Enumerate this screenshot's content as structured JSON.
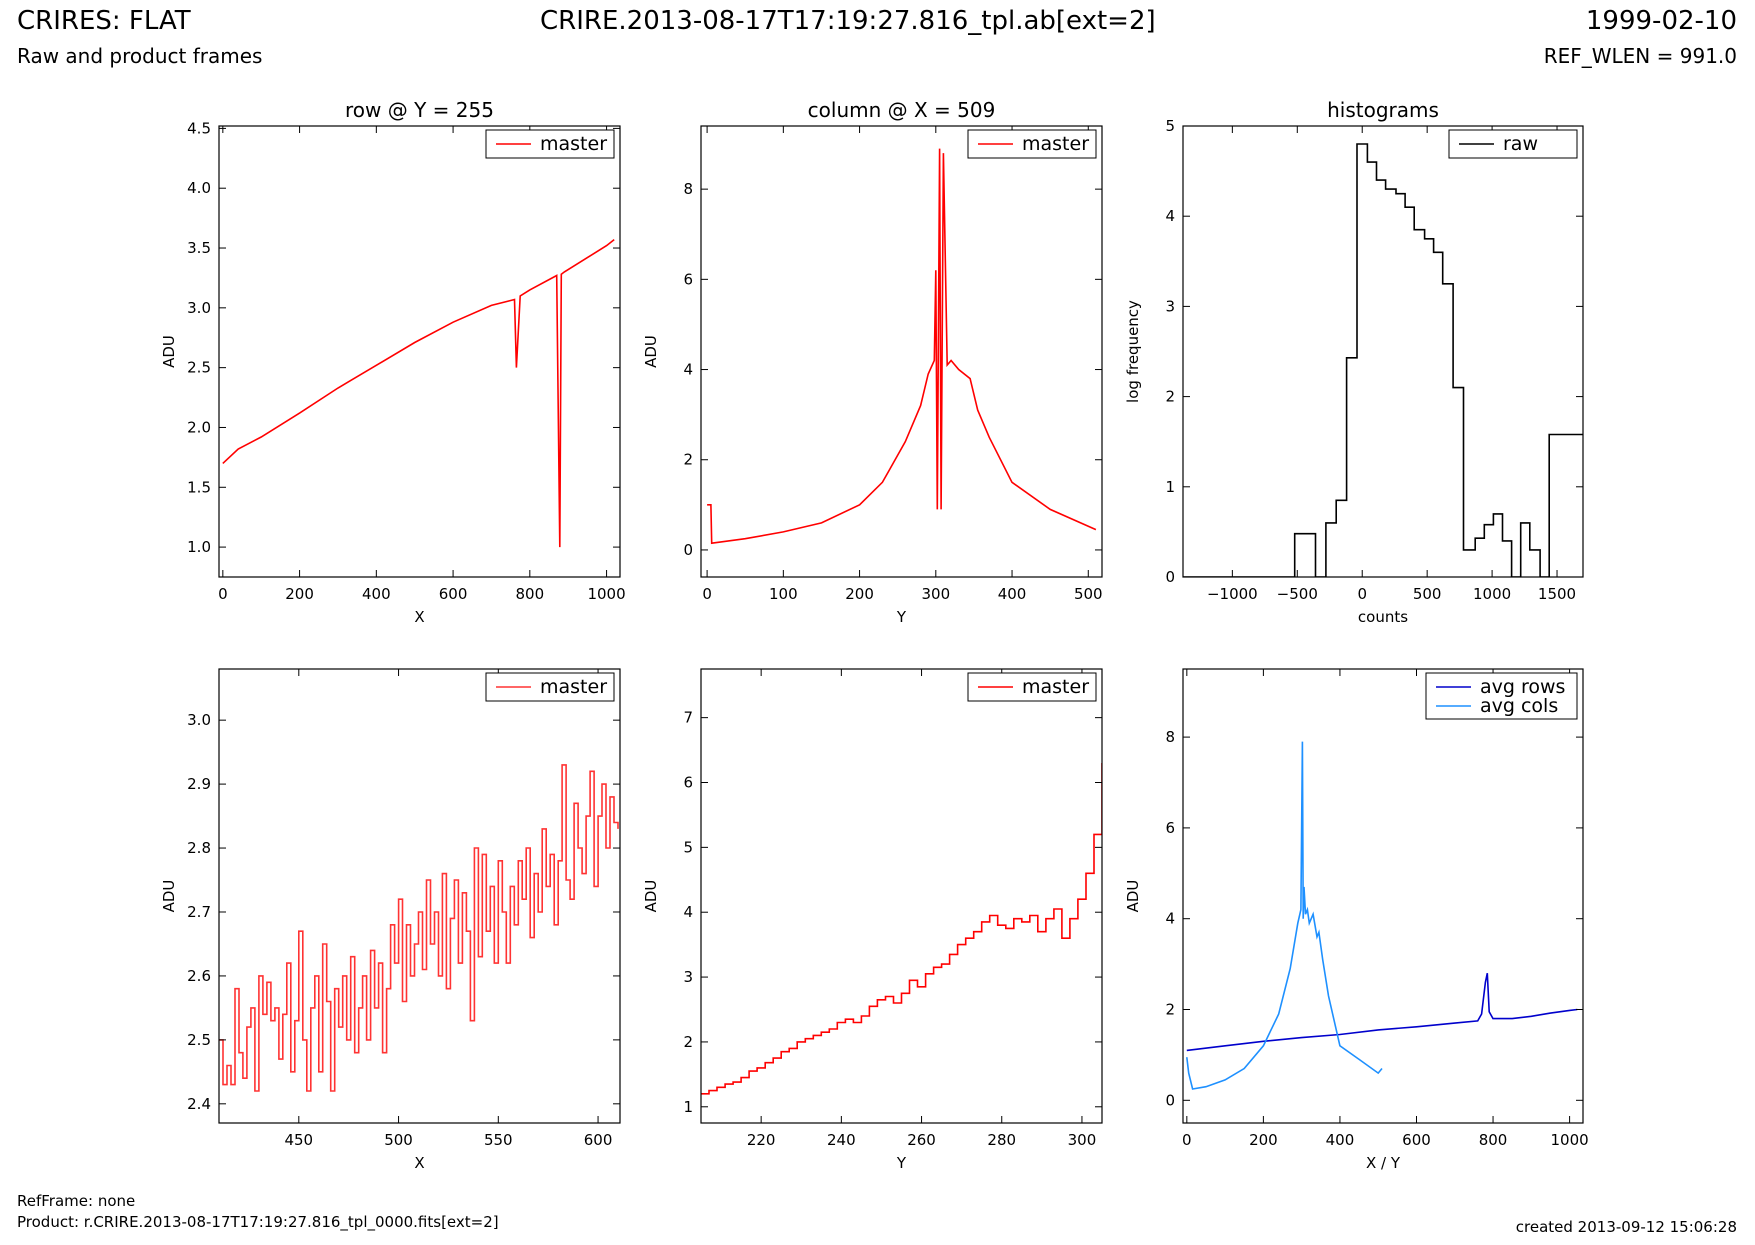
{
  "header": {
    "title": "CRIRES: FLAT",
    "subtitle": "Raw and product frames",
    "file": "CRIRE.2013-08-17T17:19:27.816_tpl.ab[ext=2]",
    "date": "1999-02-10",
    "ref_wlen": "REF_WLEN = 991.0"
  },
  "footer": {
    "refframe": "RefFrame: none",
    "product": "Product: r.CRIRE.2013-08-17T17:19:27.816_tpl_0000.fits[ext=2]",
    "created": "created 2013-09-12 15:06:28"
  },
  "colors": {
    "master": "#ff0000",
    "raw": "#000000",
    "avg_rows": "#0000cc",
    "avg_cols": "#1e90ff"
  },
  "chart_data": [
    {
      "type": "line",
      "title": "row @ Y = 255",
      "xlabel": "X",
      "ylabel": "ADU",
      "xlim": [
        -10,
        1035
      ],
      "ylim": [
        0.75,
        4.52
      ],
      "xticks": [
        0,
        200,
        400,
        600,
        800,
        1000
      ],
      "yticks": [
        1.0,
        1.5,
        2.0,
        2.5,
        3.0,
        3.5,
        4.0,
        4.5
      ],
      "legend_position": "top-right",
      "series": [
        {
          "name": "master",
          "color": "#ff0000",
          "x": [
            0,
            40,
            100,
            200,
            300,
            400,
            500,
            600,
            700,
            760,
            765,
            775,
            800,
            870,
            878,
            882,
            890,
            950,
            1000,
            1020
          ],
          "y": [
            1.7,
            1.82,
            1.92,
            2.12,
            2.33,
            2.52,
            2.71,
            2.88,
            3.02,
            3.07,
            2.5,
            3.1,
            3.15,
            3.27,
            1.0,
            3.28,
            3.3,
            3.42,
            3.52,
            3.57
          ]
        }
      ]
    },
    {
      "type": "line",
      "title": "column @ X = 509",
      "xlabel": "Y",
      "ylabel": "ADU",
      "xlim": [
        -8,
        518
      ],
      "ylim": [
        -0.6,
        9.4
      ],
      "xticks": [
        0,
        100,
        200,
        300,
        400,
        500
      ],
      "yticks": [
        0,
        2,
        4,
        6,
        8
      ],
      "legend_position": "top-right",
      "series": [
        {
          "name": "master",
          "color": "#ff0000",
          "x": [
            0,
            5,
            6,
            50,
            100,
            150,
            200,
            230,
            260,
            280,
            290,
            298,
            300,
            302,
            305,
            307,
            310,
            315,
            320,
            330,
            345,
            355,
            370,
            400,
            450,
            510
          ],
          "y": [
            1.0,
            1.0,
            0.15,
            0.25,
            0.4,
            0.6,
            1.0,
            1.5,
            2.4,
            3.2,
            3.9,
            4.2,
            6.2,
            0.9,
            8.9,
            0.9,
            8.8,
            4.1,
            4.2,
            4.0,
            3.8,
            3.1,
            2.5,
            1.5,
            0.9,
            0.45
          ]
        }
      ]
    },
    {
      "type": "line",
      "title": "histograms",
      "xlabel": "counts",
      "ylabel": "log frequency",
      "xlim": [
        -1380,
        1700
      ],
      "ylim": [
        0,
        5
      ],
      "xticks": [
        -1000,
        -500,
        0,
        500,
        1000,
        1500
      ],
      "yticks": [
        0,
        1,
        2,
        3,
        4,
        5
      ],
      "legend_position": "top-right",
      "series": [
        {
          "name": "raw",
          "color": "#000000",
          "step": true,
          "x": [
            -1380,
            -520,
            -360,
            -280,
            -200,
            -120,
            -40,
            40,
            110,
            180,
            260,
            330,
            400,
            480,
            550,
            620,
            700,
            780,
            870,
            940,
            1010,
            1080,
            1150,
            1220,
            1290,
            1370,
            1440,
            1510,
            1600,
            1700
          ],
          "y": [
            0,
            0.48,
            0,
            0.6,
            0.85,
            2.43,
            4.8,
            4.6,
            4.4,
            4.3,
            4.25,
            4.1,
            3.85,
            3.75,
            3.6,
            3.25,
            2.1,
            0.3,
            0.43,
            0.58,
            0.7,
            0.4,
            0,
            0.6,
            0.3,
            0,
            1.58,
            1.58,
            1.58,
            1.58
          ]
        }
      ]
    },
    {
      "type": "line",
      "xlabel": "X",
      "ylabel": "ADU",
      "xlim": [
        410,
        611
      ],
      "ylim": [
        2.37,
        3.08
      ],
      "xticks": [
        450,
        500,
        550,
        600
      ],
      "yticks": [
        2.4,
        2.5,
        2.6,
        2.7,
        2.8,
        2.9,
        3.0
      ],
      "legend_position": "top-right",
      "series": [
        {
          "name": "master",
          "color": "#ff3333",
          "step": true,
          "x": [
            410,
            412,
            414,
            416,
            418,
            420,
            422,
            424,
            426,
            428,
            430,
            432,
            434,
            436,
            438,
            440,
            442,
            444,
            446,
            448,
            450,
            452,
            454,
            456,
            458,
            460,
            462,
            464,
            466,
            468,
            470,
            472,
            474,
            476,
            478,
            480,
            482,
            484,
            486,
            488,
            490,
            492,
            494,
            496,
            498,
            500,
            502,
            504,
            506,
            508,
            510,
            512,
            514,
            516,
            518,
            520,
            522,
            524,
            526,
            528,
            530,
            532,
            534,
            536,
            538,
            540,
            542,
            544,
            546,
            548,
            550,
            552,
            554,
            556,
            558,
            560,
            562,
            564,
            566,
            568,
            570,
            572,
            574,
            576,
            578,
            580,
            582,
            584,
            586,
            588,
            590,
            592,
            594,
            596,
            598,
            600,
            602,
            604,
            606,
            608,
            610
          ],
          "y": [
            2.5,
            2.43,
            2.46,
            2.43,
            2.58,
            2.48,
            2.44,
            2.52,
            2.55,
            2.42,
            2.6,
            2.54,
            2.59,
            2.53,
            2.55,
            2.47,
            2.54,
            2.62,
            2.45,
            2.53,
            2.67,
            2.5,
            2.42,
            2.55,
            2.6,
            2.45,
            2.65,
            2.56,
            2.42,
            2.58,
            2.52,
            2.6,
            2.5,
            2.63,
            2.48,
            2.55,
            2.6,
            2.5,
            2.64,
            2.55,
            2.62,
            2.48,
            2.58,
            2.68,
            2.62,
            2.72,
            2.56,
            2.68,
            2.6,
            2.65,
            2.7,
            2.61,
            2.75,
            2.65,
            2.7,
            2.6,
            2.76,
            2.58,
            2.69,
            2.75,
            2.62,
            2.73,
            2.67,
            2.53,
            2.8,
            2.63,
            2.79,
            2.67,
            2.74,
            2.62,
            2.78,
            2.7,
            2.62,
            2.74,
            2.68,
            2.78,
            2.72,
            2.8,
            2.66,
            2.76,
            2.7,
            2.83,
            2.74,
            2.79,
            2.68,
            2.78,
            2.93,
            2.75,
            2.72,
            2.87,
            2.8,
            2.76,
            2.85,
            2.92,
            2.74,
            2.85,
            2.9,
            2.8,
            2.88,
            2.84,
            2.83
          ]
        }
      ]
    },
    {
      "type": "line",
      "xlabel": "Y",
      "ylabel": "ADU",
      "xlim": [
        205,
        305
      ],
      "ylim": [
        0.75,
        7.75
      ],
      "xticks": [
        220,
        240,
        260,
        280,
        300
      ],
      "yticks": [
        1,
        2,
        3,
        4,
        5,
        6,
        7
      ],
      "legend_position": "top-right",
      "series": [
        {
          "name": "master",
          "color": "#ff0000",
          "step": true,
          "x": [
            205,
            207,
            209,
            211,
            213,
            215,
            217,
            219,
            221,
            223,
            225,
            227,
            229,
            231,
            233,
            235,
            237,
            239,
            241,
            243,
            245,
            247,
            249,
            251,
            253,
            255,
            257,
            259,
            261,
            263,
            265,
            267,
            269,
            271,
            273,
            275,
            277,
            279,
            281,
            283,
            285,
            287,
            289,
            291,
            293,
            295,
            297,
            299,
            301,
            303,
            305
          ],
          "y": [
            1.2,
            1.25,
            1.3,
            1.35,
            1.38,
            1.45,
            1.55,
            1.6,
            1.68,
            1.75,
            1.85,
            1.9,
            2.0,
            2.05,
            2.1,
            2.15,
            2.2,
            2.3,
            2.35,
            2.3,
            2.4,
            2.55,
            2.65,
            2.7,
            2.6,
            2.75,
            2.95,
            2.85,
            3.05,
            3.15,
            3.2,
            3.35,
            3.5,
            3.6,
            3.7,
            3.85,
            3.95,
            3.8,
            3.75,
            3.9,
            3.85,
            3.95,
            3.7,
            3.9,
            4.05,
            3.6,
            3.9,
            4.2,
            4.6,
            5.2,
            6.3
          ]
        }
      ]
    },
    {
      "type": "line",
      "xlabel": "X / Y",
      "ylabel": "ADU",
      "xlim": [
        -10,
        1035
      ],
      "ylim": [
        -0.5,
        9.5
      ],
      "xticks": [
        0,
        200,
        400,
        600,
        800,
        1000
      ],
      "yticks": [
        0,
        2,
        4,
        6,
        8
      ],
      "legend_position": "top-right",
      "series": [
        {
          "name": "avg rows",
          "color": "#0000cc",
          "x": [
            0,
            100,
            200,
            300,
            400,
            500,
            600,
            700,
            760,
            770,
            780,
            785,
            790,
            800,
            850,
            900,
            950,
            1000,
            1020
          ],
          "y": [
            1.1,
            1.2,
            1.3,
            1.38,
            1.45,
            1.55,
            1.62,
            1.7,
            1.75,
            1.9,
            2.6,
            2.8,
            1.95,
            1.8,
            1.8,
            1.85,
            1.92,
            1.98,
            2.0
          ]
        },
        {
          "name": "avg cols",
          "color": "#1e90ff",
          "x": [
            0,
            5,
            15,
            50,
            100,
            150,
            200,
            240,
            270,
            290,
            298,
            302,
            304,
            306,
            310,
            315,
            320,
            330,
            340,
            345,
            355,
            370,
            400,
            450,
            500,
            510
          ],
          "y": [
            0.95,
            0.6,
            0.25,
            0.3,
            0.45,
            0.7,
            1.2,
            1.9,
            2.9,
            3.9,
            4.2,
            7.9,
            4.0,
            4.7,
            4.1,
            4.2,
            3.9,
            4.1,
            3.6,
            3.7,
            3.1,
            2.3,
            1.2,
            0.9,
            0.6,
            0.7
          ]
        }
      ]
    }
  ]
}
